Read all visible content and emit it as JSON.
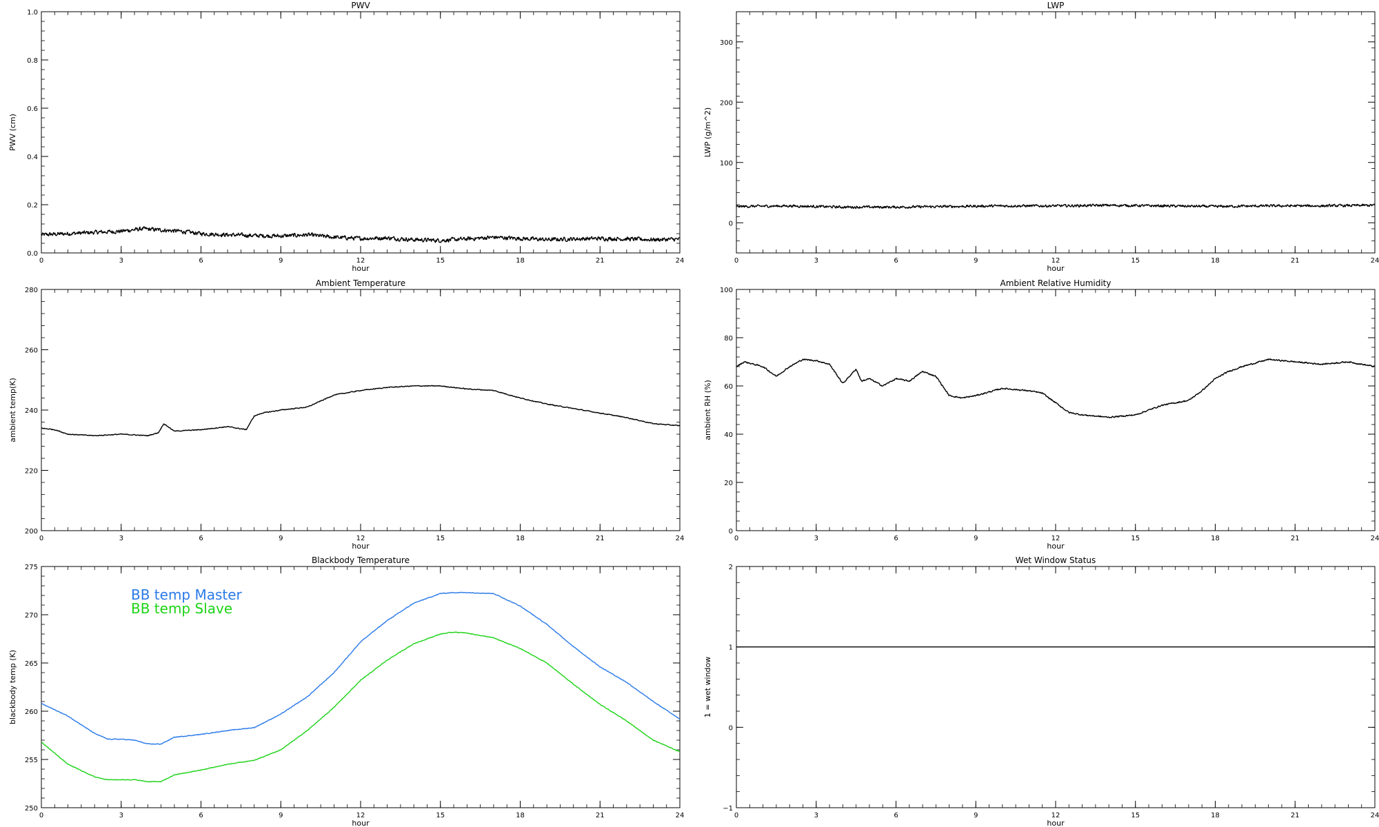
{
  "chart_data": [
    {
      "id": "pwv",
      "type": "line",
      "title": "PWV",
      "xlabel": "hour",
      "ylabel": "PWV (cm)",
      "xlim": [
        0,
        24
      ],
      "ylim": [
        0,
        1.0
      ],
      "xticks": [
        0,
        3,
        6,
        9,
        12,
        15,
        18,
        21,
        24
      ],
      "yticks": [
        0.0,
        0.2,
        0.4,
        0.6,
        0.8,
        1.0
      ],
      "ytick_labels": [
        "0.0",
        "0.2",
        "0.4",
        "0.6",
        "0.8",
        "1.0"
      ],
      "grid": false,
      "series": [
        {
          "color": "#000000",
          "noise": 0.012,
          "x": [
            0,
            1,
            2,
            3,
            3.8,
            4.5,
            5.2,
            6,
            7,
            8,
            9,
            10,
            11,
            12,
            13,
            14,
            15,
            16,
            17,
            18,
            19,
            20,
            21,
            22,
            23,
            24
          ],
          "y": [
            0.075,
            0.08,
            0.085,
            0.09,
            0.1,
            0.095,
            0.09,
            0.08,
            0.075,
            0.072,
            0.07,
            0.075,
            0.065,
            0.06,
            0.062,
            0.055,
            0.052,
            0.058,
            0.065,
            0.06,
            0.055,
            0.058,
            0.06,
            0.058,
            0.055,
            0.057
          ]
        }
      ]
    },
    {
      "id": "lwp",
      "type": "line",
      "title": "LWP",
      "xlabel": "hour",
      "ylabel": "LWP (g/m^2)",
      "xlim": [
        0,
        24
      ],
      "ylim": [
        -50,
        350
      ],
      "xticks": [
        0,
        3,
        6,
        9,
        12,
        15,
        18,
        21,
        24
      ],
      "yticks": [
        0,
        100,
        200,
        300
      ],
      "ytick_labels": [
        "0",
        "100",
        "200",
        "300"
      ],
      "grid": false,
      "series": [
        {
          "color": "#000000",
          "noise": 3,
          "x": [
            0,
            2,
            4,
            6,
            8,
            10,
            12,
            14,
            16,
            18,
            20,
            22,
            24
          ],
          "y": [
            27,
            28,
            26,
            26,
            27,
            28,
            28,
            29,
            28,
            27,
            28,
            28,
            29
          ]
        }
      ]
    },
    {
      "id": "ambient-temp",
      "type": "line",
      "title": "Ambient Temperature",
      "xlabel": "hour",
      "ylabel": "ambient temp(K)",
      "xlim": [
        0,
        24
      ],
      "ylim": [
        200,
        280
      ],
      "xticks": [
        0,
        3,
        6,
        9,
        12,
        15,
        18,
        21,
        24
      ],
      "yticks": [
        200,
        220,
        240,
        260,
        280
      ],
      "ytick_labels": [
        "200",
        "220",
        "240",
        "260",
        "280"
      ],
      "grid": false,
      "series": [
        {
          "color": "#000000",
          "noise": 0.2,
          "x": [
            0,
            0.5,
            1,
            2,
            3,
            4,
            4.4,
            4.6,
            5,
            6,
            7,
            7.7,
            8,
            8.3,
            9,
            10,
            11,
            12,
            13,
            14,
            15,
            16,
            17,
            18,
            19,
            20,
            21,
            22,
            23,
            24
          ],
          "y": [
            234,
            233.5,
            232,
            231.5,
            232,
            231.5,
            232.5,
            235.5,
            233,
            233.5,
            234.5,
            233.5,
            238,
            239,
            240,
            241,
            245,
            246.5,
            247.5,
            248,
            248,
            247,
            246.5,
            244,
            242,
            240.5,
            239,
            237.5,
            235.5,
            234.8
          ]
        }
      ]
    },
    {
      "id": "ambient-rh",
      "type": "line",
      "title": "Ambient Relative Humidity",
      "xlabel": "hour",
      "ylabel": "ambient RH (%)",
      "xlim": [
        0,
        24
      ],
      "ylim": [
        0,
        100
      ],
      "xticks": [
        0,
        3,
        6,
        9,
        12,
        15,
        18,
        21,
        24
      ],
      "yticks": [
        0,
        20,
        40,
        60,
        80,
        100
      ],
      "ytick_labels": [
        "0",
        "20",
        "40",
        "60",
        "80",
        "100"
      ],
      "grid": false,
      "series": [
        {
          "color": "#000000",
          "noise": 0.4,
          "x": [
            0,
            0.3,
            1,
            1.5,
            2,
            2.5,
            3,
            3.5,
            4,
            4.5,
            4.7,
            5,
            5.5,
            6,
            6.5,
            7,
            7.5,
            8,
            8.5,
            9,
            10,
            11,
            11.5,
            12,
            12.5,
            13,
            14,
            15,
            15.5,
            16,
            16.5,
            17,
            17.5,
            18,
            18.5,
            19,
            20,
            21,
            22,
            23,
            24
          ],
          "y": [
            68,
            70,
            68,
            64,
            68,
            71,
            70.5,
            69,
            61,
            67,
            62,
            63,
            60,
            63,
            62,
            66,
            64,
            56,
            55,
            56,
            59,
            58,
            57,
            53,
            49,
            48,
            47,
            48,
            50,
            52,
            53,
            54,
            58,
            63,
            66,
            68,
            71,
            70,
            69,
            70,
            68
          ]
        }
      ]
    },
    {
      "id": "blackbody-temp",
      "type": "line",
      "title": "Blackbody Temperature",
      "xlabel": "hour",
      "ylabel": "blackbody temp (K)",
      "xlim": [
        0,
        24
      ],
      "ylim": [
        250,
        275
      ],
      "xticks": [
        0,
        3,
        6,
        9,
        12,
        15,
        18,
        21,
        24
      ],
      "yticks": [
        250,
        255,
        260,
        265,
        270,
        275
      ],
      "ytick_labels": [
        "250",
        "255",
        "260",
        "265",
        "270",
        "275"
      ],
      "grid": false,
      "legend": "upper-left",
      "series": [
        {
          "name": "BB temp Master",
          "color": "#2a7ae8",
          "noise": 0.05,
          "x": [
            0,
            1,
            2,
            2.5,
            3,
            3.5,
            4,
            4.5,
            5,
            6,
            7,
            8,
            9,
            10,
            11,
            12,
            13,
            14,
            15,
            15.5,
            16,
            17,
            18,
            19,
            20,
            21,
            22,
            23,
            24
          ],
          "y": [
            260.8,
            259.5,
            257.7,
            257.1,
            257.1,
            257.0,
            256.6,
            256.6,
            257.3,
            257.6,
            258.0,
            258.3,
            259.7,
            261.5,
            264,
            267.2,
            269.4,
            271.2,
            272.2,
            272.3,
            272.3,
            272.2,
            270.9,
            269.0,
            266.7,
            264.6,
            263.0,
            261.0,
            259.2
          ]
        },
        {
          "name": "BB temp Slave",
          "color": "#1ed318",
          "noise": 0.05,
          "x": [
            0,
            1,
            2,
            2.5,
            3,
            3.5,
            4,
            4.5,
            5,
            6,
            7,
            8,
            9,
            10,
            11,
            12,
            13,
            14,
            15,
            15.5,
            16,
            17,
            18,
            19,
            20,
            21,
            22,
            23,
            24
          ],
          "y": [
            256.8,
            254.5,
            253.2,
            252.9,
            252.9,
            252.9,
            252.7,
            252.7,
            253.4,
            253.9,
            254.5,
            254.9,
            256.0,
            258.0,
            260.4,
            263.2,
            265.3,
            267.0,
            268.0,
            268.2,
            268.1,
            267.6,
            266.5,
            265.0,
            262.8,
            260.7,
            259.0,
            257.0,
            255.8
          ]
        }
      ]
    },
    {
      "id": "wet-window",
      "type": "line",
      "title": "Wet Window Status",
      "xlabel": "hour",
      "ylabel": "1 = wet window",
      "xlim": [
        0,
        24
      ],
      "ylim": [
        -1,
        2
      ],
      "xticks": [
        0,
        3,
        6,
        9,
        12,
        15,
        18,
        21,
        24
      ],
      "yticks": [
        -1,
        0,
        1,
        2
      ],
      "ytick_labels": [
        "−1",
        "0",
        "1",
        "2"
      ],
      "grid": false,
      "series": [
        {
          "color": "#000000",
          "noise": 0,
          "x": [
            0,
            24
          ],
          "y": [
            1,
            1
          ]
        }
      ]
    }
  ]
}
